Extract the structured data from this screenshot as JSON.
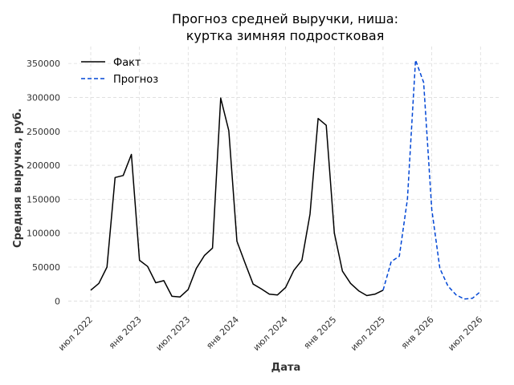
{
  "chart_data": {
    "type": "line",
    "title_lines": [
      "Прогноз средней выручки, ниша:",
      "куртка зимняя подростковая"
    ],
    "xlabel": "Дата",
    "ylabel": "Средняя выручка, руб.",
    "ylim": [
      -15000,
      375000
    ],
    "yticks": [
      0,
      50000,
      100000,
      150000,
      200000,
      250000,
      300000,
      350000
    ],
    "xlim": [
      "2022-05",
      "2026-08"
    ],
    "xticks": [
      {
        "date": "2022-07",
        "label": "июл 2022"
      },
      {
        "date": "2023-01",
        "label": "янв 2023"
      },
      {
        "date": "2023-07",
        "label": "июл 2023"
      },
      {
        "date": "2024-01",
        "label": "янв 2024"
      },
      {
        "date": "2024-07",
        "label": "июл 2024"
      },
      {
        "date": "2025-01",
        "label": "янв 2025"
      },
      {
        "date": "2025-07",
        "label": "июл 2025"
      },
      {
        "date": "2026-01",
        "label": "янв 2026"
      },
      {
        "date": "2026-07",
        "label": "июл 2026"
      }
    ],
    "grid": true,
    "legend_position": "top-left",
    "series": [
      {
        "name": "Факт",
        "color": "#000000",
        "style": "solid",
        "points": [
          [
            "2022-07",
            16000
          ],
          [
            "2022-08",
            26000
          ],
          [
            "2022-09",
            50000
          ],
          [
            "2022-10",
            182000
          ],
          [
            "2022-11",
            185000
          ],
          [
            "2022-12",
            216000
          ],
          [
            "2023-01",
            60000
          ],
          [
            "2023-02",
            51000
          ],
          [
            "2023-03",
            27000
          ],
          [
            "2023-04",
            30000
          ],
          [
            "2023-05",
            7000
          ],
          [
            "2023-06",
            6000
          ],
          [
            "2023-07",
            17000
          ],
          [
            "2023-08",
            48000
          ],
          [
            "2023-09",
            67000
          ],
          [
            "2023-10",
            78000
          ],
          [
            "2023-11",
            299000
          ],
          [
            "2023-12",
            251000
          ],
          [
            "2024-01",
            88000
          ],
          [
            "2024-02",
            56000
          ],
          [
            "2024-03",
            25000
          ],
          [
            "2024-04",
            18000
          ],
          [
            "2024-05",
            10000
          ],
          [
            "2024-06",
            9000
          ],
          [
            "2024-07",
            20000
          ],
          [
            "2024-08",
            45000
          ],
          [
            "2024-09",
            60000
          ],
          [
            "2024-10",
            128000
          ],
          [
            "2024-11",
            269000
          ],
          [
            "2024-12",
            259000
          ],
          [
            "2025-01",
            100000
          ],
          [
            "2025-02",
            44000
          ],
          [
            "2025-03",
            26000
          ],
          [
            "2025-04",
            15000
          ],
          [
            "2025-05",
            8000
          ],
          [
            "2025-06",
            10000
          ],
          [
            "2025-07",
            16000
          ]
        ]
      },
      {
        "name": "Прогноз",
        "color": "#0046d5",
        "style": "dashed",
        "points": [
          [
            "2025-07",
            16000
          ],
          [
            "2025-08",
            58000
          ],
          [
            "2025-09",
            66000
          ],
          [
            "2025-10",
            150000
          ],
          [
            "2025-11",
            355000
          ],
          [
            "2025-12",
            322000
          ],
          [
            "2026-01",
            135000
          ],
          [
            "2026-02",
            48000
          ],
          [
            "2026-03",
            22000
          ],
          [
            "2026-04",
            9000
          ],
          [
            "2026-05",
            3000
          ],
          [
            "2026-06",
            4000
          ],
          [
            "2026-07",
            14000
          ]
        ]
      }
    ]
  }
}
